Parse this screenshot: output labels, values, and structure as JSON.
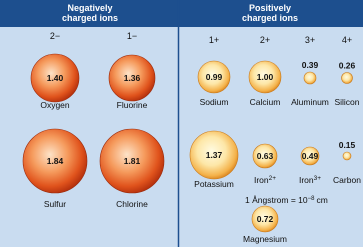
{
  "header": {
    "negative": [
      "Negatively",
      "charged ions"
    ],
    "positive": [
      "Positively",
      "charged ions"
    ]
  },
  "negative": {
    "charges": [
      "2−",
      "1−"
    ],
    "ions": [
      {
        "name": "Oxygen",
        "radius": "1.40"
      },
      {
        "name": "Fluorine",
        "radius": "1.36"
      },
      {
        "name": "Sulfur",
        "radius": "1.84"
      },
      {
        "name": "Chlorine",
        "radius": "1.81"
      }
    ]
  },
  "positive": {
    "charges": [
      "1+",
      "2+",
      "3+",
      "4+"
    ],
    "ions": [
      {
        "name": "Sodium",
        "radius": "0.99"
      },
      {
        "name": "Calcium",
        "radius": "1.00"
      },
      {
        "name": "Aluminum",
        "radius": "0.39"
      },
      {
        "name": "Silicon",
        "radius": "0.26"
      },
      {
        "name": "Potassium",
        "radius": "1.37"
      },
      {
        "name": "Iron",
        "charge": "2+",
        "radius": "0.63"
      },
      {
        "name": "Iron",
        "charge": "3+",
        "radius": "0.49"
      },
      {
        "name": "Carbon",
        "radius": "0.15"
      },
      {
        "name": "Magnesium",
        "radius": "0.72"
      }
    ]
  },
  "note": {
    "text": "1 Ångstrom = 10",
    "exponent": "−8",
    "unit": "cm"
  }
}
